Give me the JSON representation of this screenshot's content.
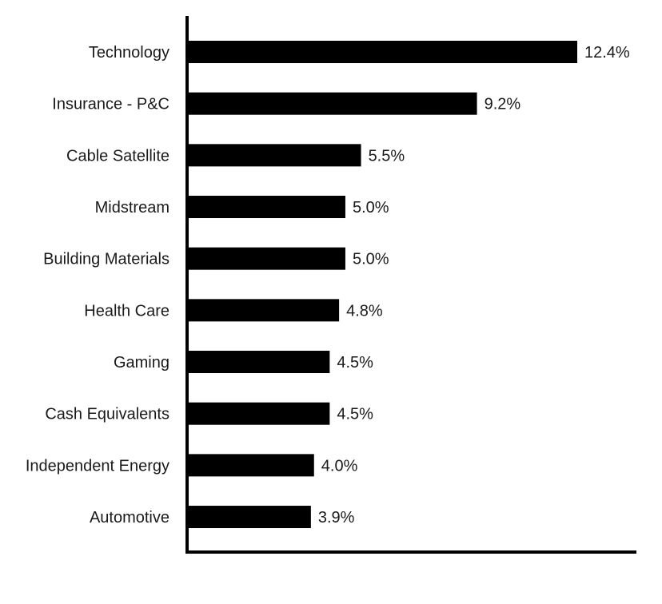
{
  "colors": {
    "bar": "#000000",
    "axis": "#000000",
    "text": "#1a1a1a",
    "background": "#ffffff"
  },
  "chart_data": {
    "type": "bar",
    "orientation": "horizontal",
    "title": "",
    "xlabel": "",
    "ylabel": "",
    "xlim": [
      0,
      14.4
    ],
    "grid": false,
    "legend": "none",
    "value_suffix": "%",
    "categories": [
      "Technology",
      "Insurance - P&C",
      "Cable Satellite",
      "Midstream",
      "Building Materials",
      "Health Care",
      "Gaming",
      "Cash Equivalents",
      "Independent Energy",
      "Automotive"
    ],
    "values": [
      12.4,
      9.2,
      5.5,
      5.0,
      5.0,
      4.8,
      4.5,
      4.5,
      4.0,
      3.9
    ],
    "value_labels": [
      "12.4%",
      "9.2%",
      "5.5%",
      "5.0%",
      "5.0%",
      "4.8%",
      "4.5%",
      "4.5%",
      "4.0%",
      "3.9%"
    ]
  }
}
